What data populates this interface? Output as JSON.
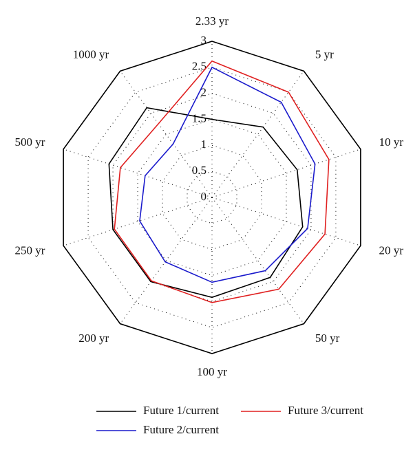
{
  "chart_data": {
    "type": "radar",
    "categories": [
      "2.33 yr",
      "5 yr",
      "10 yr",
      "20 yr",
      "50 yr",
      "100 yr",
      "200 yr",
      "250 yr",
      "500 yr",
      "1000 yr"
    ],
    "ylim": [
      0,
      3
    ],
    "yticks": [
      0,
      0.5,
      1,
      1.5,
      2,
      2.5,
      3
    ],
    "series": [
      {
        "name": "Future 1/current",
        "color": "#000000",
        "values": [
          1.5,
          1.67,
          1.72,
          1.83,
          1.9,
          1.92,
          2.0,
          2.0,
          2.08,
          2.13
        ]
      },
      {
        "name": "Future 2/current",
        "color": "#1a1acc",
        "values": [
          2.5,
          2.26,
          2.08,
          1.93,
          1.74,
          1.63,
          1.53,
          1.46,
          1.35,
          1.27
        ]
      },
      {
        "name": "Future 3/current",
        "color": "#e02020",
        "values": [
          2.62,
          2.5,
          2.36,
          2.28,
          2.18,
          2.02,
          1.98,
          1.97,
          1.85,
          1.75
        ]
      }
    ]
  }
}
